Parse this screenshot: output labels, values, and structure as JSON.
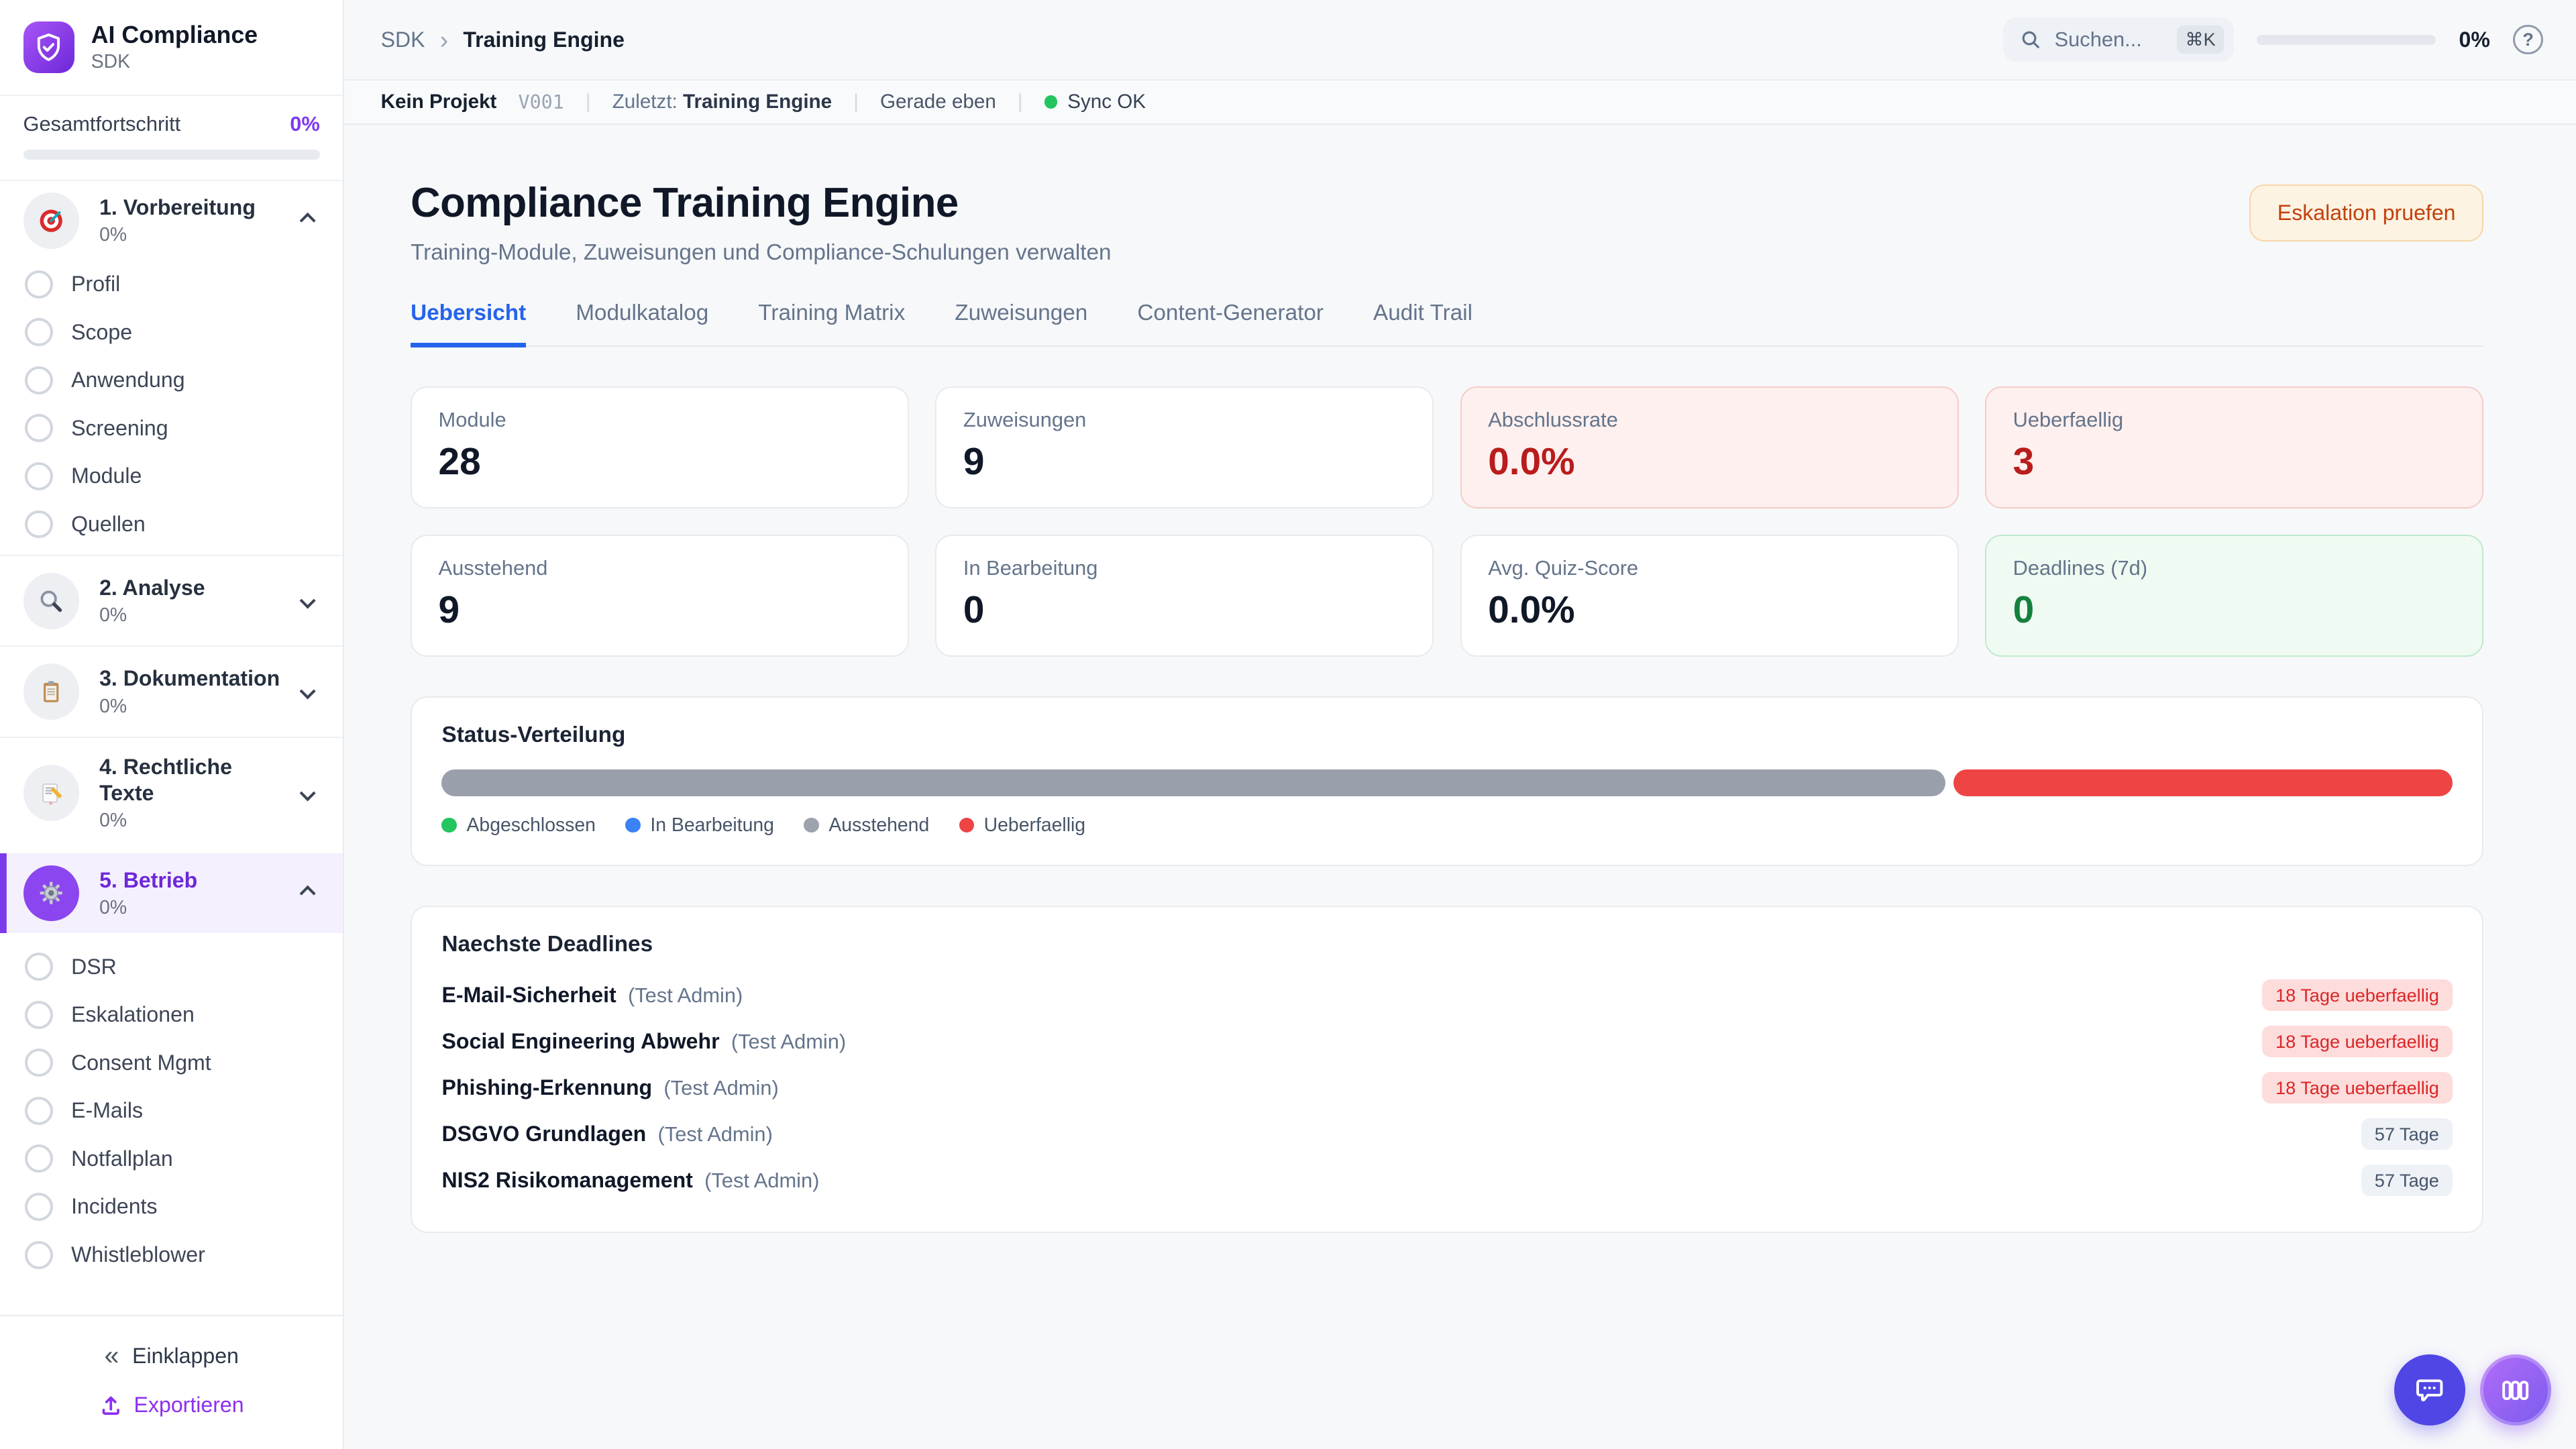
{
  "app": {
    "title": "AI Compliance",
    "subtitle": "SDK"
  },
  "sidebar": {
    "progress": {
      "label": "Gesamtfortschritt",
      "value": "0%"
    },
    "sections": [
      {
        "label": "1. Vorbereitung",
        "percent": "0%"
      },
      {
        "label": "2. Analyse",
        "percent": "0%"
      },
      {
        "label": "3. Dokumentation",
        "percent": "0%"
      },
      {
        "label": "4. Rechtliche Texte",
        "percent": "0%"
      },
      {
        "label": "5. Betrieb",
        "percent": "0%"
      }
    ],
    "prep_items": [
      "Profil",
      "Scope",
      "Anwendung",
      "Screening",
      "Module",
      "Quellen"
    ],
    "betrieb_items": [
      "DSR",
      "Eskalationen",
      "Consent Mgmt",
      "E-Mails",
      "Notfallplan",
      "Incidents",
      "Whistleblower"
    ],
    "collapse_icon": "«",
    "collapse_label": "Einklappen",
    "export_label": "Exportieren"
  },
  "topbar": {
    "breadcrumb_root": "SDK",
    "breadcrumb_sep": "›",
    "breadcrumb_current": "Training Engine",
    "search_placeholder": "Suchen...",
    "search_kbd": "⌘K",
    "progress_text": "0%",
    "help_glyph": "?"
  },
  "statusbar": {
    "project": "Kein Projekt",
    "version": "V001",
    "sep": "|",
    "last_label": "Zuletzt:",
    "last_value": "Training Engine",
    "ago": "Gerade eben",
    "sync": "Sync OK"
  },
  "page": {
    "title": "Compliance Training Engine",
    "subtitle": "Training-Module, Zuweisungen und Compliance-Schulungen verwalten",
    "action": "Eskalation pruefen"
  },
  "tabs": [
    "Uebersicht",
    "Modulkatalog",
    "Training Matrix",
    "Zuweisungen",
    "Content-Generator",
    "Audit Trail"
  ],
  "stats": [
    {
      "label": "Module",
      "value": "28"
    },
    {
      "label": "Zuweisungen",
      "value": "9"
    },
    {
      "label": "Abschlussrate",
      "value": "0.0%"
    },
    {
      "label": "Ueberfaellig",
      "value": "3"
    },
    {
      "label": "Ausstehend",
      "value": "9"
    },
    {
      "label": "In Bearbeitung",
      "value": "0"
    },
    {
      "label": "Avg. Quiz-Score",
      "value": "0.0%"
    },
    {
      "label": "Deadlines (7d)",
      "value": "0"
    }
  ],
  "status_distribution": {
    "title": "Status-Verteilung",
    "legend": [
      {
        "label": "Abgeschlossen",
        "color": "#22c55e"
      },
      {
        "label": "In Bearbeitung",
        "color": "#3b82f6"
      },
      {
        "label": "Ausstehend",
        "color": "#9ca3af"
      },
      {
        "label": "Ueberfaellig",
        "color": "#ef4444"
      }
    ],
    "segments": [
      {
        "label": "Ausstehend",
        "count": 9,
        "pct": 74.8,
        "color": "#9aa0ab"
      },
      {
        "label": "Ueberfaellig",
        "count": 3,
        "pct": 24.8,
        "color": "#ef4444"
      }
    ]
  },
  "deadlines": {
    "title": "Naechste Deadlines",
    "rows": [
      {
        "name": "E-Mail-Sicherheit",
        "assignee": "(Test Admin)",
        "badge": "18 Tage ueberfaellig"
      },
      {
        "name": "Social Engineering Abwehr",
        "assignee": "(Test Admin)",
        "badge": "18 Tage ueberfaellig"
      },
      {
        "name": "Phishing-Erkennung",
        "assignee": "(Test Admin)",
        "badge": "18 Tage ueberfaellig"
      },
      {
        "name": "DSGVO Grundlagen",
        "assignee": "(Test Admin)",
        "badge": "57 Tage"
      },
      {
        "name": "NIS2 Risikomanagement",
        "assignee": "(Test Admin)",
        "badge": "57 Tage"
      }
    ]
  },
  "colors": {
    "accent": "#7c3aed",
    "tab_active": "#2563eb",
    "danger": "#dc2626",
    "success": "#15803d",
    "warning_text": "#c2410c",
    "sync_ok": "#22c55e"
  }
}
